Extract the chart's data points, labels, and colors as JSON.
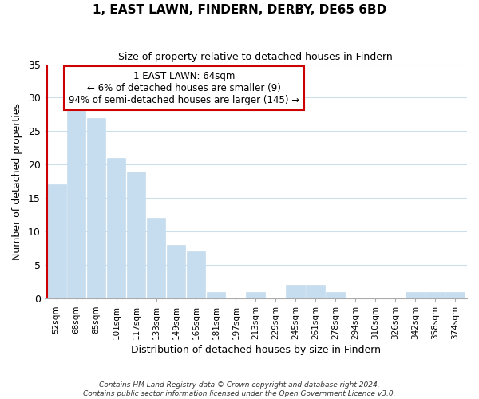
{
  "title": "1, EAST LAWN, FINDERN, DERBY, DE65 6BD",
  "subtitle": "Size of property relative to detached houses in Findern",
  "xlabel": "Distribution of detached houses by size in Findern",
  "ylabel": "Number of detached properties",
  "bar_labels": [
    "52sqm",
    "68sqm",
    "85sqm",
    "101sqm",
    "117sqm",
    "133sqm",
    "149sqm",
    "165sqm",
    "181sqm",
    "197sqm",
    "213sqm",
    "229sqm",
    "245sqm",
    "261sqm",
    "278sqm",
    "294sqm",
    "310sqm",
    "326sqm",
    "342sqm",
    "358sqm",
    "374sqm"
  ],
  "bar_values": [
    17,
    28,
    27,
    21,
    19,
    12,
    8,
    7,
    1,
    0,
    1,
    0,
    2,
    2,
    1,
    0,
    0,
    0,
    1,
    1,
    1
  ],
  "bar_color": "#c5ddef",
  "highlight_color": "#cc0000",
  "annotation_title": "1 EAST LAWN: 64sqm",
  "annotation_line1": "← 6% of detached houses are smaller (9)",
  "annotation_line2": "94% of semi-detached houses are larger (145) →",
  "annotation_box_color": "#ffffff",
  "annotation_box_edge_color": "#cc0000",
  "ylim": [
    0,
    35
  ],
  "yticks": [
    0,
    5,
    10,
    15,
    20,
    25,
    30,
    35
  ],
  "footer_line1": "Contains HM Land Registry data © Crown copyright and database right 2024.",
  "footer_line2": "Contains public sector information licensed under the Open Government Licence v3.0.",
  "background_color": "#ffffff",
  "grid_color": "#ccdfe8",
  "figsize": [
    6.0,
    5.0
  ],
  "dpi": 100
}
